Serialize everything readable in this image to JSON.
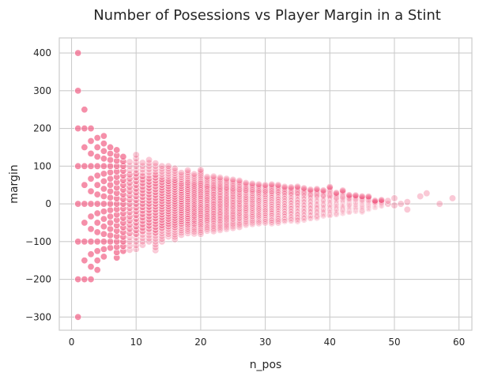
{
  "chart_data": {
    "type": "scatter",
    "title": "Number of Posessions vs Player Margin in a Stint",
    "xlabel": "n_pos",
    "ylabel": "margin",
    "xlim": [
      -1.9,
      62
    ],
    "ylim": [
      -335,
      440
    ],
    "xticks": [
      0,
      10,
      20,
      30,
      40,
      50,
      60
    ],
    "yticks": [
      -300,
      -200,
      -100,
      0,
      100,
      200,
      300,
      400
    ],
    "grid": true,
    "legend": "none",
    "point_color": "#f2638a",
    "note": "margin = 100 * k / n_pos; each column lists n_pos with min and max observed margin",
    "columns": [
      [
        1,
        -300,
        400
      ],
      [
        2,
        -200,
        250
      ],
      [
        3,
        -200,
        200
      ],
      [
        4,
        -175,
        175
      ],
      [
        5,
        -140,
        180
      ],
      [
        6,
        -133,
        150
      ],
      [
        7,
        -143,
        143
      ],
      [
        8,
        -125,
        125
      ],
      [
        9,
        -133,
        122
      ],
      [
        10,
        -120,
        130
      ],
      [
        11,
        -118,
        118
      ],
      [
        12,
        -108,
        117
      ],
      [
        13,
        -130,
        108
      ],
      [
        14,
        -100,
        107
      ],
      [
        15,
        -93,
        100
      ],
      [
        16,
        -94,
        94
      ],
      [
        17,
        -88,
        88
      ],
      [
        18,
        -83,
        89
      ],
      [
        19,
        -84,
        84
      ],
      [
        20,
        -80,
        90
      ],
      [
        21,
        -76,
        76
      ],
      [
        22,
        -73,
        73
      ],
      [
        23,
        -70,
        70
      ],
      [
        24,
        -67,
        67
      ],
      [
        25,
        -64,
        64
      ],
      [
        26,
        -62,
        62
      ],
      [
        27,
        -59,
        59
      ],
      [
        28,
        -57,
        57
      ],
      [
        29,
        -55,
        55
      ],
      [
        30,
        -53,
        53
      ],
      [
        31,
        -52,
        52
      ],
      [
        32,
        -50,
        50
      ],
      [
        33,
        -48,
        48
      ],
      [
        34,
        -47,
        47
      ],
      [
        35,
        -46,
        46
      ],
      [
        36,
        -42,
        44
      ],
      [
        37,
        -40,
        40
      ],
      [
        38,
        -37,
        40
      ],
      [
        39,
        -33,
        38
      ],
      [
        40,
        -30,
        45
      ],
      [
        41,
        -27,
        30
      ],
      [
        42,
        -26,
        38
      ],
      [
        43,
        -23,
        25
      ],
      [
        44,
        -20,
        23
      ],
      [
        45,
        -20,
        20
      ],
      [
        46,
        -15,
        20
      ],
      [
        47,
        -9,
        9
      ],
      [
        48,
        -6,
        12
      ]
    ],
    "extra_points": [
      [
        49,
        0
      ],
      [
        49,
        8
      ],
      [
        50,
        15
      ],
      [
        50,
        -4
      ],
      [
        51,
        0
      ],
      [
        52,
        5
      ],
      [
        52,
        -15
      ],
      [
        54,
        20
      ],
      [
        55,
        28
      ],
      [
        57,
        0
      ],
      [
        59,
        15
      ]
    ]
  }
}
